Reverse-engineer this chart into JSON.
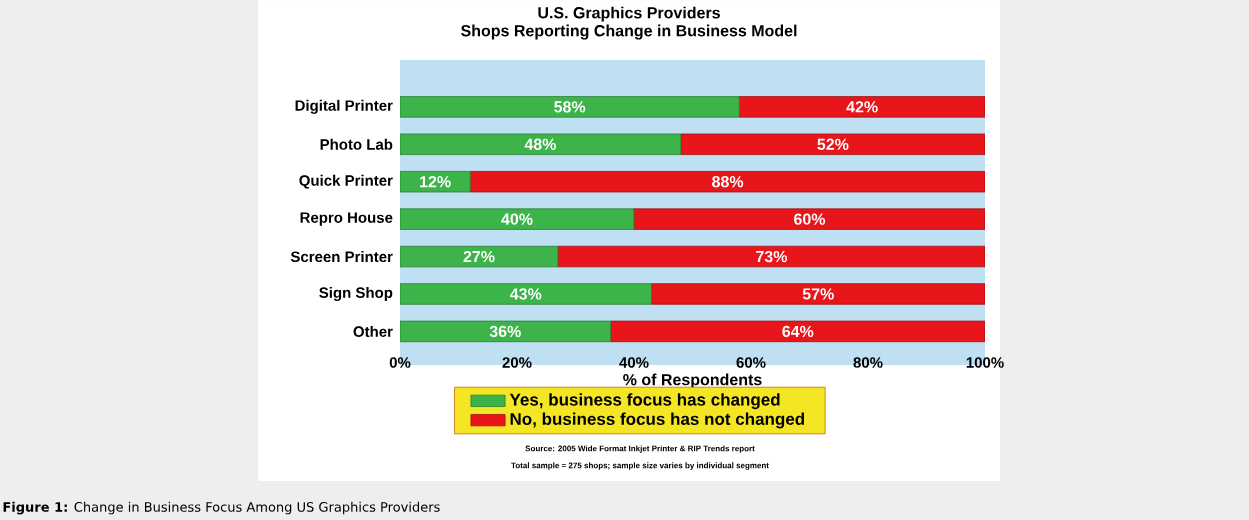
{
  "chart_data": {
    "type": "bar",
    "orientation": "horizontal",
    "stacked": true,
    "title": "U.S. Graphics Providers",
    "subtitle": "Shops Reporting Change in Business Model",
    "xlabel": "% of Respondents",
    "categories": [
      "Digital Printer",
      "Photo Lab",
      "Quick Printer",
      "Repro House",
      "Screen Printer",
      "Sign Shop",
      "Other"
    ],
    "series": [
      {
        "name": "Yes, business focus has changed",
        "color": "#3cb44a",
        "values": [
          58,
          48,
          12,
          40,
          27,
          43,
          36
        ],
        "value_labels": [
          "58%",
          "48%",
          "12%",
          "40%",
          "27%",
          "43%",
          "36%"
        ]
      },
      {
        "name": "No, business focus has not changed",
        "color": "#e8161b",
        "values": [
          42,
          52,
          88,
          60,
          73,
          57,
          64
        ],
        "value_labels": [
          "42%",
          "52%",
          "88%",
          "60%",
          "73%",
          "57%",
          "64%"
        ]
      }
    ],
    "xlim": [
      0,
      100
    ],
    "xticks": [
      {
        "value": 0,
        "label": "0%"
      },
      {
        "value": 20,
        "label": "20%"
      },
      {
        "value": 40,
        "label": "40%"
      },
      {
        "value": 60,
        "label": "60%"
      },
      {
        "value": 80,
        "label": "80%"
      },
      {
        "value": 100,
        "label": "100%"
      }
    ],
    "legend": "bottom",
    "grid": false,
    "annotations": [
      "Source: 2005 Wide Format Inkjet Printer & RIP Trends report",
      "Total sample = 275 shops; sample size varies by individual segment",
      "**Figure 1:** Change in Business Focus Among US Graphics Providers"
    ]
  }
}
